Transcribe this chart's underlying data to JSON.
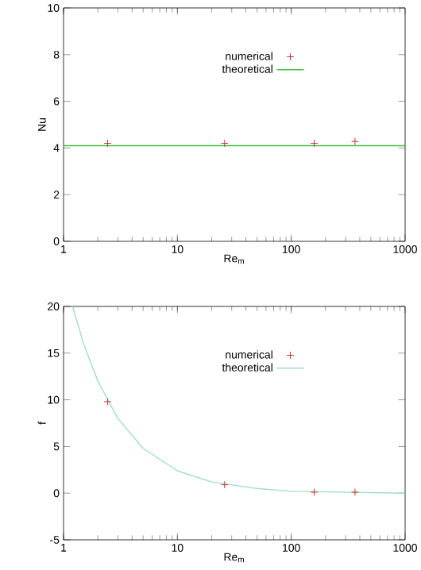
{
  "chart_data": [
    {
      "type": "line",
      "xlabel": "Re$_{m}$",
      "ylabel": "Nu",
      "log": "x",
      "legend": "top",
      "xlim": [
        1,
        1000
      ],
      "ylim": [
        0,
        10
      ],
      "xticks": [
        1,
        10,
        100,
        1000
      ],
      "yticks": [
        0,
        2,
        4,
        6,
        8,
        10
      ],
      "series": [
        {
          "name": "numerical",
          "type": "scatter",
          "marker": "cross",
          "color": "#c83232",
          "x": [
            2.44,
            26,
            159,
            363
          ],
          "values": [
            4.2,
            4.2,
            4.2,
            4.28
          ]
        },
        {
          "name": "theoretical",
          "color": "#40c040",
          "x": [
            1,
            1000
          ],
          "values": [
            4.1,
            4.1
          ]
        }
      ]
    },
    {
      "type": "line",
      "xlabel": "Re$_{m}$",
      "ylabel": "f",
      "log": "x",
      "legend": "top",
      "xlim": [
        1,
        1000
      ],
      "ylim": [
        -5,
        20
      ],
      "xticks": [
        1,
        10,
        100,
        1000
      ],
      "yticks": [
        -5,
        0,
        5,
        10,
        15,
        20
      ],
      "series": [
        {
          "name": "numerical",
          "type": "scatter",
          "marker": "cross",
          "color": "#c83232",
          "x": [
            2.44,
            26,
            159,
            363
          ],
          "values": [
            9.8,
            0.9,
            0.1,
            0.1
          ]
        },
        {
          "name": "theoretical",
          "color": "#a0e0c0",
          "x": [
            1.2,
            1.5,
            2,
            3,
            5,
            10,
            20,
            50,
            100,
            1000
          ],
          "values": [
            20,
            16,
            12,
            8,
            4.8,
            2.4,
            1.2,
            0.5,
            0.2,
            0
          ]
        }
      ]
    }
  ]
}
